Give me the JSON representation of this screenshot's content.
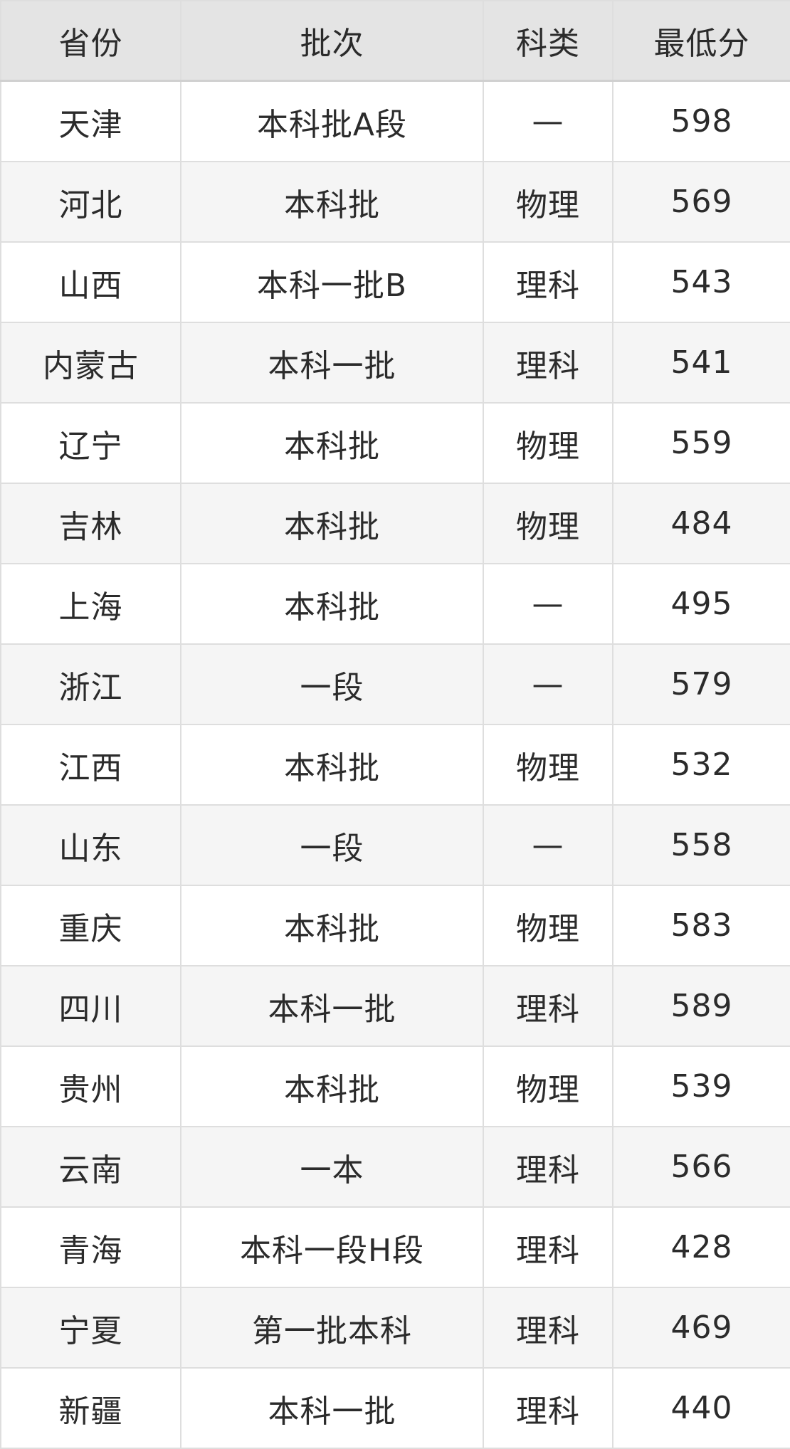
{
  "chart_data": {
    "type": "table",
    "columns": [
      "省份",
      "批次",
      "科类",
      "最低分"
    ],
    "rows": [
      {
        "province": "天津",
        "batch": "本科批A段",
        "category": "—",
        "min_score": "598"
      },
      {
        "province": "河北",
        "batch": "本科批",
        "category": "物理",
        "min_score": "569"
      },
      {
        "province": "山西",
        "batch": "本科一批B",
        "category": "理科",
        "min_score": "543"
      },
      {
        "province": "内蒙古",
        "batch": "本科一批",
        "category": "理科",
        "min_score": "541"
      },
      {
        "province": "辽宁",
        "batch": "本科批",
        "category": "物理",
        "min_score": "559"
      },
      {
        "province": "吉林",
        "batch": "本科批",
        "category": "物理",
        "min_score": "484"
      },
      {
        "province": "上海",
        "batch": "本科批",
        "category": "—",
        "min_score": "495"
      },
      {
        "province": "浙江",
        "batch": "一段",
        "category": "—",
        "min_score": "579"
      },
      {
        "province": "江西",
        "batch": "本科批",
        "category": "物理",
        "min_score": "532"
      },
      {
        "province": "山东",
        "batch": "一段",
        "category": "—",
        "min_score": "558"
      },
      {
        "province": "重庆",
        "batch": "本科批",
        "category": "物理",
        "min_score": "583"
      },
      {
        "province": "四川",
        "batch": "本科一批",
        "category": "理科",
        "min_score": "589"
      },
      {
        "province": "贵州",
        "batch": "本科批",
        "category": "物理",
        "min_score": "539"
      },
      {
        "province": "云南",
        "batch": "一本",
        "category": "理科",
        "min_score": "566"
      },
      {
        "province": "青海",
        "batch": "本科一段H段",
        "category": "理科",
        "min_score": "428"
      },
      {
        "province": "宁夏",
        "batch": "第一批本科",
        "category": "理科",
        "min_score": "469"
      },
      {
        "province": "新疆",
        "batch": "本科一批",
        "category": "理科",
        "min_score": "440"
      }
    ]
  },
  "colors": {
    "header_bg": "#e4e4e4",
    "row_bg": "#ffffff",
    "alt_row_bg": "#f5f5f5",
    "grid_border": "#dedede",
    "header_bottom_border": "#d0d0d0",
    "text": "#2b2b2b"
  }
}
